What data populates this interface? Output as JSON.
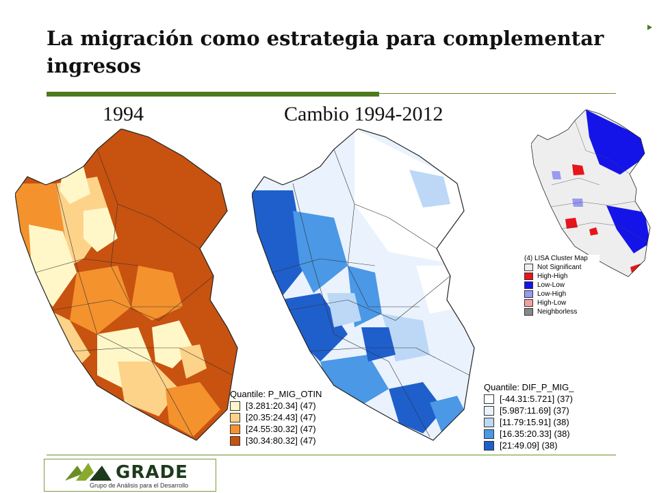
{
  "slide": {
    "title": "La migración como estrategia para complementar ingresos",
    "map_labels": [
      "1994",
      "Cambio 1994-2012"
    ]
  },
  "maps": [
    {
      "id": "1994",
      "legend_title": "Quantile: P_MIG_OTIN",
      "classes": [
        {
          "label": "[3.281:20.34] (47)",
          "color": "#fff7c8"
        },
        {
          "label": "[20.35:24.43] (47)",
          "color": "#fdd38a"
        },
        {
          "label": "[24.55:30.32] (47)",
          "color": "#f4922e"
        },
        {
          "label": "[30.34:80.32] (47)",
          "color": "#c8520f"
        }
      ]
    },
    {
      "id": "cambio",
      "legend_title": "Quantile: DIF_P_MIG_",
      "classes": [
        {
          "label": "[-44.31:5.721] (37)",
          "color": "#ffffff"
        },
        {
          "label": "[5.987:11.69] (37)",
          "color": "#eaf2fd"
        },
        {
          "label": "[11.79:15.91] (38)",
          "color": "#bcd8f6"
        },
        {
          "label": "[16.35:20.33] (38)",
          "color": "#4a98e6"
        },
        {
          "label": "[21:49.09] (38)",
          "color": "#1f5fcc"
        }
      ]
    }
  ],
  "lisa": {
    "legend_title": "(4) LISA Cluster Map",
    "classes": [
      {
        "label": "Not Significant",
        "color": "#eeeeee"
      },
      {
        "label": "High-High",
        "color": "#e8141b"
      },
      {
        "label": "Low-Low",
        "color": "#1414e8"
      },
      {
        "label": "Low-High",
        "color": "#9a9af0"
      },
      {
        "label": "High-Low",
        "color": "#f4a0a0"
      },
      {
        "label": "Neighborless",
        "color": "#888888"
      }
    ]
  },
  "logo": {
    "name": "GRADE",
    "subtitle": "Grupo de Análisis para el Desarrollo"
  }
}
